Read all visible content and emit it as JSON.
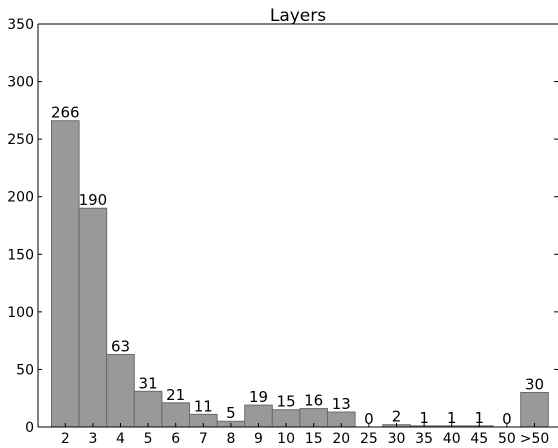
{
  "chart_data": {
    "type": "bar",
    "title": "Layers",
    "xlabel": "",
    "ylabel": "",
    "categories": [
      "2",
      "3",
      "4",
      "5",
      "6",
      "7",
      "8",
      "9",
      "10",
      "15",
      "20",
      "25",
      "30",
      "35",
      "40",
      "45",
      "50",
      ">50"
    ],
    "values": [
      266,
      190,
      63,
      31,
      21,
      11,
      5,
      19,
      15,
      16,
      13,
      0,
      2,
      1,
      1,
      1,
      0,
      30
    ],
    "data_labels": [
      "266",
      "190",
      "63",
      "31",
      "21",
      "11",
      "5",
      "19",
      "15",
      "16",
      "13",
      "0",
      "2",
      "1",
      "1",
      "1",
      "0",
      "30"
    ],
    "ylim": [
      0,
      350
    ],
    "yticks": [
      "0",
      "50",
      "100",
      "150",
      "200",
      "250",
      "300",
      "350"
    ],
    "grid": false,
    "legend": "none",
    "colors": {
      "bar": "#999999",
      "bar_edge": "#6a6a6a",
      "axis": "#000000"
    }
  }
}
